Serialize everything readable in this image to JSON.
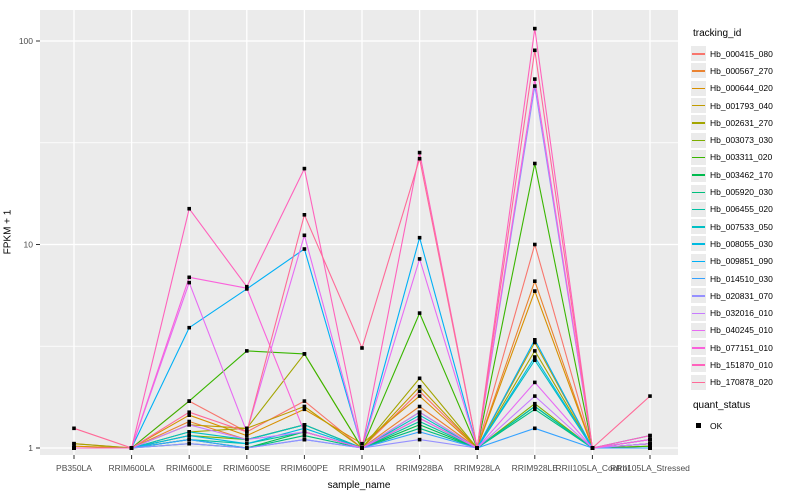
{
  "figure": {
    "y_axis": {
      "title": "FPKM + 1",
      "tick_labels": [
        "1",
        "10",
        "100"
      ],
      "scale": "log10"
    },
    "x_axis": {
      "title": "sample_name"
    },
    "legend": {
      "title": "tracking_id"
    },
    "quant_legend": {
      "title": "quant_status",
      "item_label": "OK"
    },
    "style": {
      "panel_bg": "#ebebeb",
      "grid_color": "#ffffff",
      "point_color": "#000000",
      "tick_color": "#333333",
      "tick_label_color": "#4d4d4d"
    }
  },
  "chart_data": {
    "type": "line",
    "title": "",
    "xlabel": "sample_name",
    "ylabel": "FPKM + 1",
    "yscale": "log",
    "ylim": [
      0.95,
      130
    ],
    "y_major_ticks": [
      1,
      10,
      100
    ],
    "y_minor_ticks": [
      3.162,
      31.62
    ],
    "grid": true,
    "legend_position": "right",
    "point_marker": "black-square (quant_status OK)",
    "categories": [
      "PB350LA",
      "RRIM600LA",
      "RRIM600LE",
      "RRIM600SE",
      "RRIM600PE",
      "RRIM901LA",
      "RRIM928BA",
      "RRIM928LA",
      "RRIM928LE",
      "RRII105LA_Control",
      "RRII105LA_Stressed"
    ],
    "series": [
      {
        "name": "Hb_000415_080",
        "color": "#F8766D",
        "values": [
          1.05,
          1,
          1.7,
          1.2,
          1.7,
          1,
          1.9,
          1,
          10,
          1,
          1.05
        ]
      },
      {
        "name": "Hb_000567_270",
        "color": "#EA8331",
        "values": [
          1,
          1,
          1.35,
          1.1,
          1.3,
          1,
          1.6,
          1,
          6.6,
          1,
          1.02
        ]
      },
      {
        "name": "Hb_000644_020",
        "color": "#D89000",
        "values": [
          1.02,
          1,
          1.45,
          1.15,
          1.55,
          1.05,
          1.8,
          1,
          5.9,
          1,
          1.05
        ]
      },
      {
        "name": "Hb_001793_040",
        "color": "#C09B00",
        "values": [
          1,
          1,
          1.3,
          1.25,
          1.6,
          1,
          2.0,
          1,
          3.3,
          1,
          1
        ]
      },
      {
        "name": "Hb_002631_270",
        "color": "#A3A500",
        "values": [
          1.05,
          1,
          1.2,
          1.25,
          2.9,
          1,
          2.2,
          1,
          3.0,
          1,
          1.05
        ]
      },
      {
        "name": "Hb_003073_030",
        "color": "#7CAE00",
        "values": [
          1,
          1,
          1.15,
          1.1,
          1.3,
          1,
          1.5,
          1,
          1.65,
          1,
          1
        ]
      },
      {
        "name": "Hb_003311_020",
        "color": "#39B600",
        "values": [
          1,
          1,
          1.7,
          3.0,
          2.9,
          1,
          4.6,
          1,
          25,
          1,
          1.02
        ]
      },
      {
        "name": "Hb_003462_170",
        "color": "#00BB4E",
        "values": [
          1,
          1,
          1.1,
          1,
          1.2,
          1,
          1.3,
          1,
          1.6,
          1,
          1
        ]
      },
      {
        "name": "Hb_005920_030",
        "color": "#00BF7D",
        "values": [
          1,
          1,
          1.05,
          1,
          1.15,
          1,
          1.25,
          1,
          1.55,
          1,
          1
        ]
      },
      {
        "name": "Hb_006455_020",
        "color": "#00C1A3",
        "values": [
          1,
          1,
          1.1,
          1.05,
          1.2,
          1,
          1.35,
          1,
          1.6,
          1,
          1.05
        ]
      },
      {
        "name": "Hb_007533_050",
        "color": "#00BFC4",
        "values": [
          1,
          1,
          1.2,
          1.1,
          1.3,
          1,
          1.45,
          1,
          2.7,
          1,
          1.1
        ]
      },
      {
        "name": "Hb_008055_030",
        "color": "#00BAE0",
        "values": [
          1,
          1,
          1.15,
          1.05,
          1.25,
          1,
          1.4,
          1,
          2.8,
          1,
          1.15
        ]
      },
      {
        "name": "Hb_009851_090",
        "color": "#00B0F6",
        "values": [
          1,
          1,
          3.9,
          6.05,
          9.5,
          1,
          10.8,
          1,
          3.4,
          1,
          1.1
        ]
      },
      {
        "name": "Hb_014510_030",
        "color": "#35A2FF",
        "values": [
          1,
          1,
          1.1,
          1,
          1.1,
          1,
          1.2,
          1,
          1.25,
          1,
          1
        ]
      },
      {
        "name": "Hb_020831_070",
        "color": "#9590FF",
        "values": [
          1,
          1,
          1.05,
          1,
          1.1,
          1,
          1.1,
          1,
          60,
          1,
          1.05
        ]
      },
      {
        "name": "Hb_032016_010",
        "color": "#C77CFF",
        "values": [
          1,
          1,
          1.3,
          1.1,
          1.2,
          1,
          1.5,
          1,
          1.8,
          1,
          1.05
        ]
      },
      {
        "name": "Hb_040245_010",
        "color": "#E76BF3",
        "values": [
          1,
          1,
          6.5,
          1.2,
          11.1,
          1,
          8.5,
          1,
          2.1,
          1,
          1.1
        ]
      },
      {
        "name": "Hb_077151_010",
        "color": "#FA62DB",
        "values": [
          1,
          1,
          6.9,
          6.1,
          1.2,
          1,
          1.4,
          1,
          65,
          1,
          1.1
        ]
      },
      {
        "name": "Hb_151870_010",
        "color": "#FF62BC",
        "values": [
          1,
          1,
          15,
          6.2,
          23.6,
          1,
          28.3,
          1,
          115,
          1,
          1.15
        ]
      },
      {
        "name": "Hb_170878_020",
        "color": "#FF6A98",
        "values": [
          1.25,
          1,
          1.5,
          1.2,
          14,
          3.1,
          26.4,
          1,
          90,
          1,
          1.8
        ]
      }
    ]
  }
}
